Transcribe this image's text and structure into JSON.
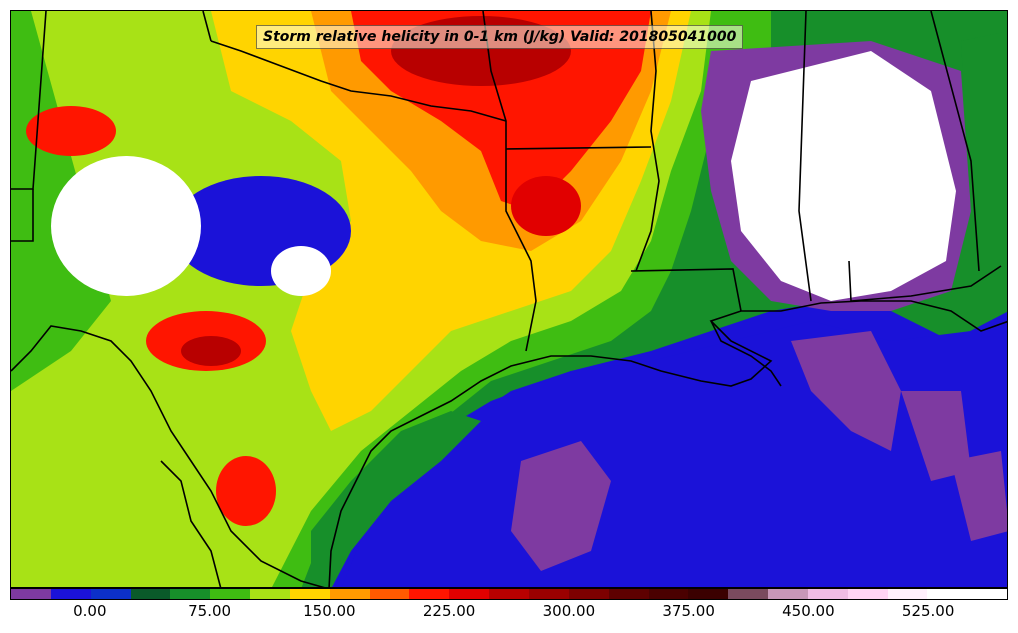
{
  "title": "Storm relative helicity in 0-1 km (J/kg) Valid: 201805041000",
  "colorbar": {
    "colors": [
      "#7e3aa1",
      "#1b12d8",
      "#0c30c9",
      "#0a5a2a",
      "#178f2a",
      "#3fbd12",
      "#a8e216",
      "#ffd400",
      "#ff9a00",
      "#ff5a00",
      "#ff1500",
      "#e10000",
      "#b80000",
      "#9a0000",
      "#7d0000",
      "#5e0000",
      "#4a0000",
      "#3b0000",
      "#7a4a5e",
      "#c897b8",
      "#f0bce4",
      "#ffd4f4",
      "#fff0fc",
      "#ffffff",
      "#ffffff"
    ],
    "tick_labels": [
      "0.00",
      "75.00",
      "150.00",
      "225.00",
      "300.00",
      "375.00",
      "450.00",
      "525.00"
    ],
    "tick_values": [
      0,
      75,
      150,
      225,
      300,
      375,
      450,
      525
    ],
    "value_range": [
      -50,
      575
    ]
  },
  "fill_colors": {
    "purple": "#7e3aa1",
    "blue": "#1b12d8",
    "dark_blue": "#0c30c9",
    "dark_green": "#0a5a2a",
    "green": "#178f2a",
    "light_green": "#3fbd12",
    "yellow_green": "#a8e216",
    "yellow": "#ffd400",
    "orange": "#ff9a00",
    "red": "#ff1500",
    "dark_red": "#b80000",
    "white": "#ffffff"
  }
}
